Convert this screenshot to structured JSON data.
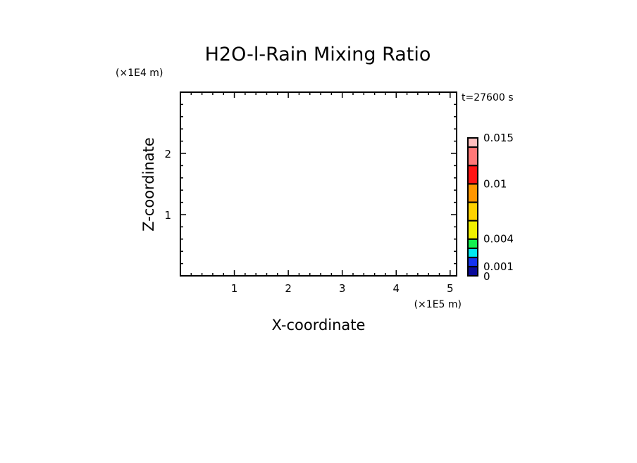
{
  "chart_data": {
    "type": "heatmap",
    "title": "H2O-l-Rain Mixing Ratio",
    "xlabel": "X-coordinate",
    "ylabel": "Z-coordinate",
    "x_unit": "(×1E5 m)",
    "y_unit": "(×1E4 m)",
    "time_label": "t=27600 s",
    "xlim": [
      0,
      5.12
    ],
    "ylim": [
      0,
      3
    ],
    "x_ticks": [
      1,
      2,
      3,
      4,
      5
    ],
    "y_ticks": [
      1,
      2
    ],
    "x_tick_labels": [
      "1",
      "2",
      "3",
      "4",
      "5"
    ],
    "y_tick_labels": [
      "1",
      "2"
    ],
    "grid": false,
    "values": [],
    "colorbar": {
      "levels": [
        0,
        0.001,
        0.002,
        0.003,
        0.004,
        0.006,
        0.008,
        0.01,
        0.012,
        0.014,
        0.015
      ],
      "colors": [
        "#0a0a9a",
        "#1432f0",
        "#00e8f0",
        "#14f050",
        "#f0f000",
        "#ffd200",
        "#ff9600",
        "#ff1414",
        "#ff7878",
        "#ffbebe"
      ],
      "tick_values": [
        0,
        0.001,
        0.004,
        0.01,
        0.015
      ],
      "tick_labels": [
        "0",
        "0.001",
        "0.004",
        "0.01",
        "0.015"
      ]
    }
  }
}
